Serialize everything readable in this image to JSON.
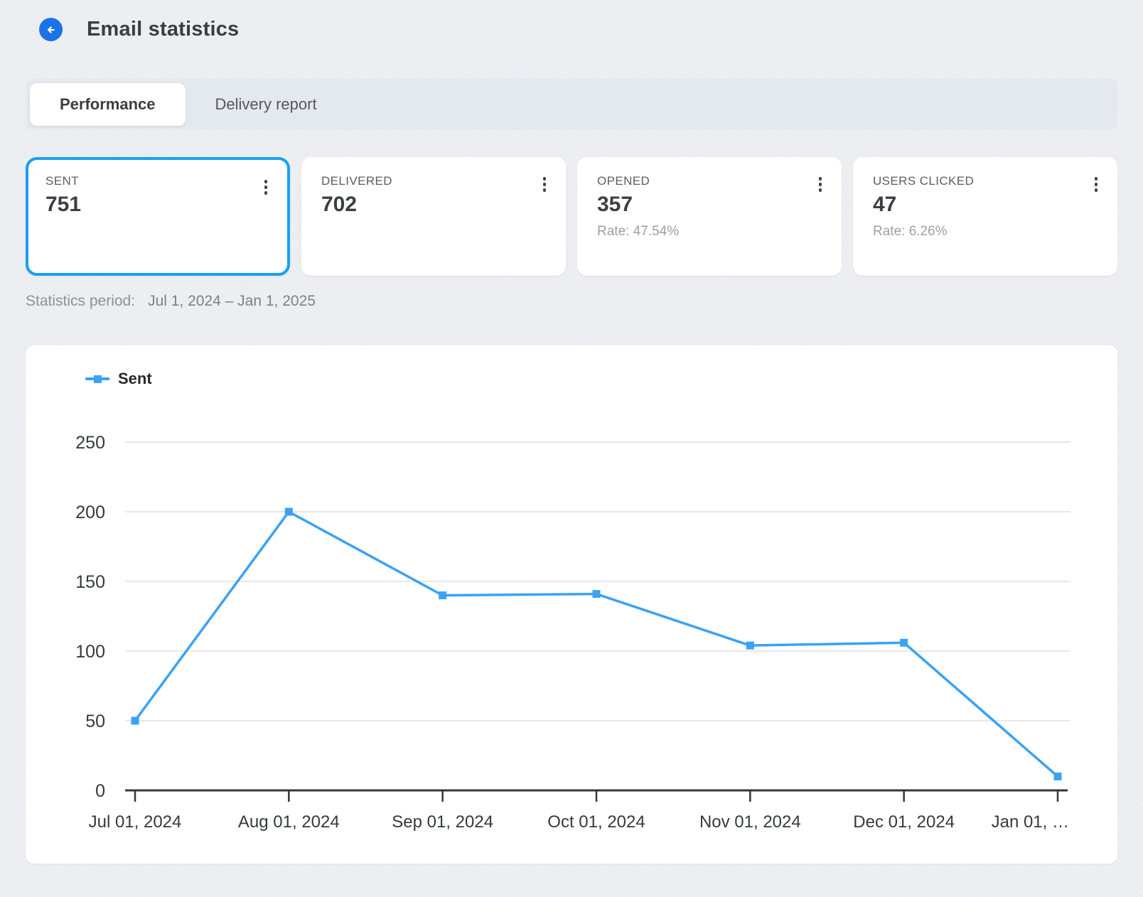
{
  "header": {
    "title": "Email statistics",
    "back_icon": "arrow-left-icon"
  },
  "tabs": [
    {
      "label": "Performance",
      "active": true
    },
    {
      "label": "Delivery report",
      "active": false
    }
  ],
  "cards": [
    {
      "label": "SENT",
      "value": "751",
      "rate": null,
      "selected": true,
      "menu_icon": "kebab-menu-icon"
    },
    {
      "label": "DELIVERED",
      "value": "702",
      "rate": null,
      "selected": false,
      "menu_icon": "kebab-menu-icon"
    },
    {
      "label": "OPENED",
      "value": "357",
      "rate": "Rate: 47.54%",
      "selected": false,
      "menu_icon": "kebab-menu-icon"
    },
    {
      "label": "USERS CLICKED",
      "value": "47",
      "rate": "Rate: 6.26%",
      "selected": false,
      "menu_icon": "kebab-menu-icon"
    }
  ],
  "period": {
    "label": "Statistics period:",
    "value": "Jul 1, 2024 – Jan 1, 2025"
  },
  "chart_data": {
    "type": "line",
    "title": "",
    "x": [
      "Jul 01, 2024",
      "Aug 01, 2024",
      "Sep 01, 2024",
      "Oct 01, 2024",
      "Nov 01, 2024",
      "Dec 01, 2024",
      "Jan 01, …"
    ],
    "series": [
      {
        "name": "Sent",
        "values": [
          50,
          200,
          140,
          141,
          104,
          106,
          10
        ],
        "color": "#3aa2f3"
      }
    ],
    "ylim": [
      0,
      250
    ],
    "yticks": [
      0,
      50,
      100,
      150,
      200,
      250
    ],
    "grid": true,
    "legend_position": "top-left",
    "xlabel": "",
    "ylabel": ""
  },
  "colors": {
    "brand_blue": "#1a73e8",
    "accent_blue": "#18a0f2",
    "series_blue": "#3aa2f3",
    "page_background": "#eef0f3",
    "tabbar_background": "#e4e8ef",
    "gridline": "#e7e8ea",
    "axis": "#34383c"
  }
}
